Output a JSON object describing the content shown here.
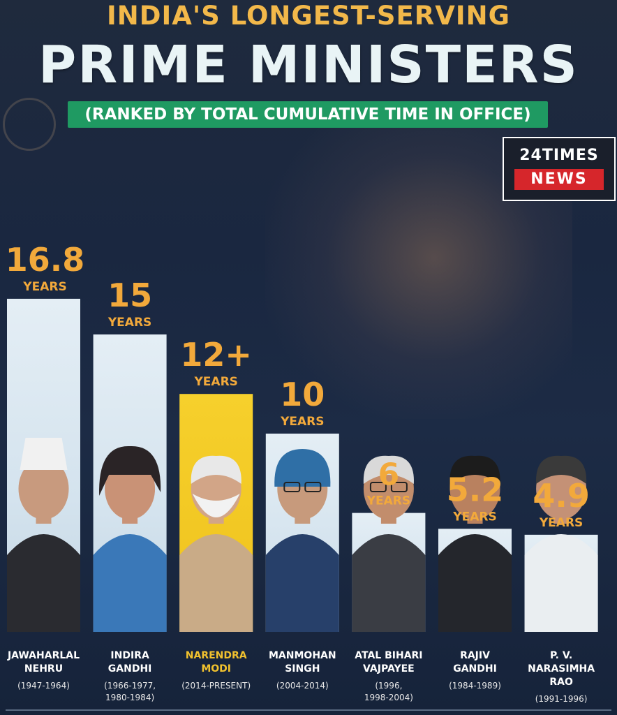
{
  "header": {
    "title_line1": "INDIA'S LONGEST-SERVING",
    "title_line2": "PRIME MINISTERS",
    "subtitle": "(RANKED BY TOTAL CUMULATIVE TIME IN OFFICE)"
  },
  "brand": {
    "line1": "24TIMES",
    "line2": "NEWS"
  },
  "colors": {
    "title_gold": "#f2b84a",
    "value_orange": "#f2a93b",
    "highlight_yellow": "#f2c22e",
    "subtitle_green": "#1f9a62",
    "brand_red": "#d6262b",
    "bar_light": "#dfeaf2"
  },
  "chart_data": {
    "type": "bar",
    "title": "INDIA'S LONGEST-SERVING PRIME MINISTERS",
    "subtitle": "(RANKED BY TOTAL CUMULATIVE TIME IN OFFICE)",
    "categories": [
      "JAWAHARLAL NEHRU",
      "INDIRA GANDHI",
      "NARENDRA MODI",
      "MANMOHAN SINGH",
      "ATAL BIHARI VAJPAYEE",
      "RAJIV GANDHI",
      "P. V. NARASIMHA RAO"
    ],
    "values": [
      16.8,
      15,
      12,
      10,
      6,
      5.2,
      4.9
    ],
    "value_labels": [
      "16.8",
      "15",
      "12+",
      "10",
      "6",
      "5.2",
      "4.9"
    ],
    "unit_label": "YEARS",
    "highlight_index": 2,
    "xlabel": "",
    "ylabel": ""
  },
  "prime_ministers": [
    {
      "name": "JAWAHARLAL\nNEHRU",
      "years": "(1947-1964)",
      "icon": "portrait-icon"
    },
    {
      "name": "INDIRA\nGANDHI",
      "years": "(1966-1977,\n1980-1984)",
      "icon": "portrait-icon"
    },
    {
      "name": "NARENDRA\nMODI",
      "years": "(2014-PRESENT)",
      "icon": "portrait-icon"
    },
    {
      "name": "MANMOHAN\nSINGH",
      "years": "(2004-2014)",
      "icon": "portrait-icon"
    },
    {
      "name": "ATAL BIHARI\nVAJPAYEE",
      "years": "(1996,\n1998-2004)",
      "icon": "portrait-icon"
    },
    {
      "name": "RAJIV\nGANDHI",
      "years": "(1984-1989)",
      "icon": "portrait-icon"
    },
    {
      "name": "P. V.\nNARASIMHA\nRAO",
      "years": "(1991-1996)",
      "icon": "portrait-icon"
    }
  ]
}
